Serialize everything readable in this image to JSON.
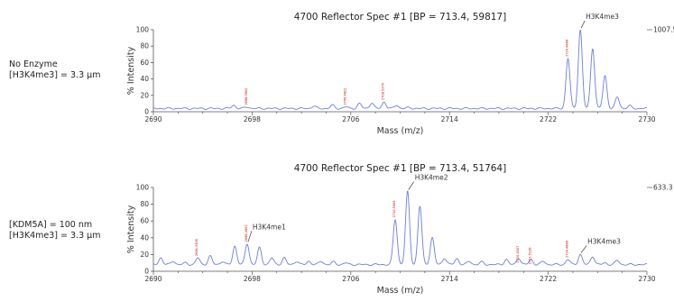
{
  "conditions": [
    {
      "line1": "No Enzyme",
      "line2": "[H3K4me3] = 3.3 µm"
    },
    {
      "line1": "[KDM5A] = 100 nm",
      "line2": "[H3K4me3] = 3.3 µm"
    }
  ],
  "chart_data": [
    {
      "type": "line",
      "title": "4700 Reflector Spec #1 [BP = 713.4, 59817]",
      "xlabel": "Mass (m/z)",
      "ylabel": "% Intensity",
      "xlim": [
        2690,
        2730
      ],
      "ylim": [
        0,
        100
      ],
      "x_ticks": [
        "2690",
        "2698",
        "2706",
        "2714",
        "2722",
        "2730"
      ],
      "y_ticks": [
        "0",
        "20",
        "40",
        "60",
        "80",
        "100"
      ],
      "max_intensity_label": "1007.5",
      "baseline": 4,
      "color": "#6b7fd7",
      "peaks": [
        {
          "x": 2696.5,
          "y": 4
        },
        {
          "x": 2697.6,
          "y": 6
        },
        {
          "x": 2703.0,
          "y": 3
        },
        {
          "x": 2704.5,
          "y": 4
        },
        {
          "x": 2705.6,
          "y": 6
        },
        {
          "x": 2706.7,
          "y": 10
        },
        {
          "x": 2707.7,
          "y": 11
        },
        {
          "x": 2708.7,
          "y": 12
        },
        {
          "x": 2709.7,
          "y": 8
        },
        {
          "x": 2710.7,
          "y": 5
        },
        {
          "x": 2723.6,
          "y": 65
        },
        {
          "x": 2724.6,
          "y": 100
        },
        {
          "x": 2725.6,
          "y": 78
        },
        {
          "x": 2726.6,
          "y": 44
        },
        {
          "x": 2727.6,
          "y": 18
        },
        {
          "x": 2728.6,
          "y": 7
        }
      ],
      "peak_labels": [
        {
          "x": 2697.6,
          "y": 6,
          "text": "2698.3902"
        },
        {
          "x": 2705.6,
          "y": 6,
          "text": "2706.4822"
        },
        {
          "x": 2708.7,
          "y": 12,
          "text": "2709.5376"
        },
        {
          "x": 2723.6,
          "y": 65,
          "text": "2724.4889"
        }
      ],
      "annotations": [
        {
          "text": "H3K4me3",
          "x": 2724.6,
          "y": 100
        }
      ]
    },
    {
      "type": "line",
      "title": "4700 Reflector Spec #1 [BP = 713.4, 51764]",
      "xlabel": "Mass (m/z)",
      "ylabel": "% Intensity",
      "xlim": [
        2690,
        2730
      ],
      "ylim": [
        0,
        100
      ],
      "x_ticks": [
        "2690",
        "2698",
        "2706",
        "2714",
        "2722",
        "2730"
      ],
      "y_ticks": [
        "0",
        "20",
        "40",
        "60",
        "80",
        "100"
      ],
      "max_intensity_label": "633.3",
      "baseline": 8,
      "color": "#6b7fd7",
      "peaks": [
        {
          "x": 2690.6,
          "y": 16
        },
        {
          "x": 2691.6,
          "y": 12
        },
        {
          "x": 2692.6,
          "y": 10
        },
        {
          "x": 2693.6,
          "y": 16
        },
        {
          "x": 2694.6,
          "y": 18
        },
        {
          "x": 2695.6,
          "y": 12
        },
        {
          "x": 2696.6,
          "y": 30
        },
        {
          "x": 2697.6,
          "y": 33
        },
        {
          "x": 2698.6,
          "y": 28
        },
        {
          "x": 2699.6,
          "y": 16
        },
        {
          "x": 2700.6,
          "y": 8
        },
        {
          "x": 2701.6,
          "y": 4
        },
        {
          "x": 2702.6,
          "y": 4
        },
        {
          "x": 2703.6,
          "y": 4
        },
        {
          "x": 2704.6,
          "y": 3
        },
        {
          "x": 2705.6,
          "y": 2
        },
        {
          "x": 2709.6,
          "y": 62
        },
        {
          "x": 2710.6,
          "y": 95
        },
        {
          "x": 2711.6,
          "y": 78
        },
        {
          "x": 2712.6,
          "y": 40
        },
        {
          "x": 2713.6,
          "y": 16
        },
        {
          "x": 2714.6,
          "y": 7
        },
        {
          "x": 2715.6,
          "y": 4
        },
        {
          "x": 2716.6,
          "y": 3
        },
        {
          "x": 2718.6,
          "y": 6
        },
        {
          "x": 2719.6,
          "y": 8
        },
        {
          "x": 2720.6,
          "y": 6
        },
        {
          "x": 2721.6,
          "y": 4
        },
        {
          "x": 2723.6,
          "y": 14
        },
        {
          "x": 2724.6,
          "y": 20
        },
        {
          "x": 2725.6,
          "y": 18
        },
        {
          "x": 2726.6,
          "y": 10
        },
        {
          "x": 2727.6,
          "y": 5
        }
      ],
      "peak_labels": [
        {
          "x": 2693.6,
          "y": 16,
          "text": "2694.3306"
        },
        {
          "x": 2697.6,
          "y": 33,
          "text": "2698.3902"
        },
        {
          "x": 2709.6,
          "y": 62,
          "text": "2710.5065"
        },
        {
          "x": 2719.6,
          "y": 8,
          "text": "2720.4507"
        },
        {
          "x": 2720.6,
          "y": 6,
          "text": "2721.5116"
        },
        {
          "x": 2723.6,
          "y": 14,
          "text": "2724.4889"
        }
      ],
      "annotations": [
        {
          "text": "H3K4me1",
          "x": 2697.6,
          "y": 33
        },
        {
          "text": "H3K4me2",
          "x": 2710.6,
          "y": 95
        },
        {
          "text": "H3K4me3",
          "x": 2724.6,
          "y": 20
        }
      ]
    }
  ]
}
